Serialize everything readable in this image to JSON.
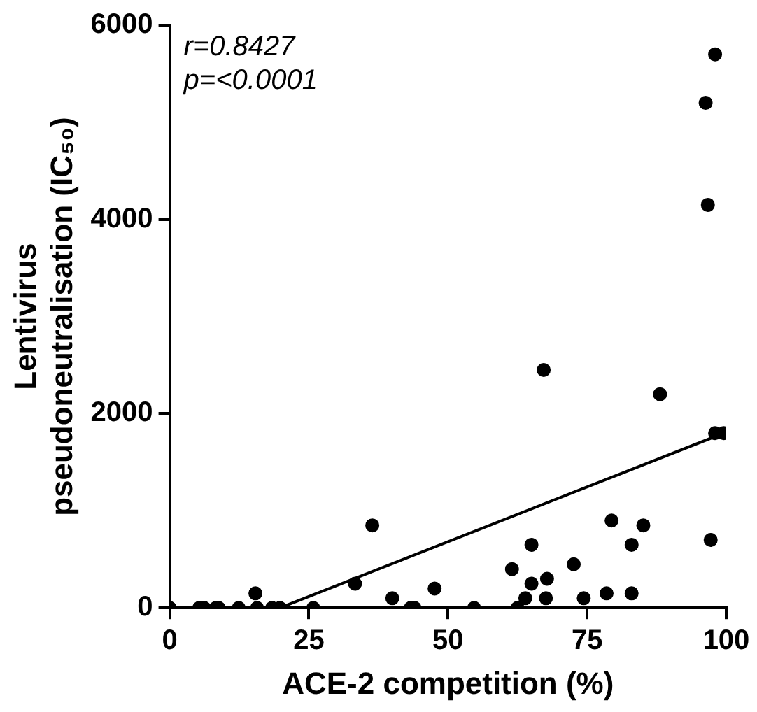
{
  "chart_data": {
    "type": "scatter",
    "xlabel": "ACE-2 competition (%)",
    "ylabel": "Lentivirus\npseudoneutralisation (IC₅₀)",
    "annotations": [
      "r=0.8427",
      "p=<0.0001"
    ],
    "xlim": [
      0,
      100
    ],
    "ylim": [
      0,
      6000
    ],
    "xticks": [
      0,
      25,
      50,
      75,
      100
    ],
    "yticks": [
      0,
      2000,
      4000,
      6000
    ],
    "grid": false,
    "legend": false,
    "marker": "circle",
    "series": [
      {
        "color": "#000000",
        "x": [
          0,
          5.3,
          6.2,
          8.3,
          8.8,
          12.4,
          15.4,
          15.7,
          18.4,
          19.8,
          25.8,
          33.3,
          36.4,
          40,
          43.3,
          44,
          47.6,
          54.7,
          61.5,
          62.5,
          63.9,
          65,
          65,
          67.2,
          67.6,
          67.8,
          72.6,
          74.4,
          78.5,
          79.4,
          83,
          83,
          85.1,
          88.1,
          96.3,
          96.7,
          97.2,
          98,
          98,
          99.5
        ],
        "values": [
          0,
          0,
          0,
          0,
          0,
          0,
          150,
          0,
          0,
          0,
          0,
          250,
          850,
          100,
          0,
          0,
          200,
          0,
          400,
          0,
          100,
          650,
          250,
          2450,
          100,
          300,
          450,
          100,
          150,
          900,
          650,
          150,
          850,
          2200,
          5200,
          4150,
          700,
          5700,
          1800,
          1800
        ]
      },
      {
        "type": "line",
        "color": "#000000",
        "marker": "none",
        "x": [
          19.8,
          100
        ],
        "values": [
          0,
          1810
        ]
      }
    ]
  }
}
